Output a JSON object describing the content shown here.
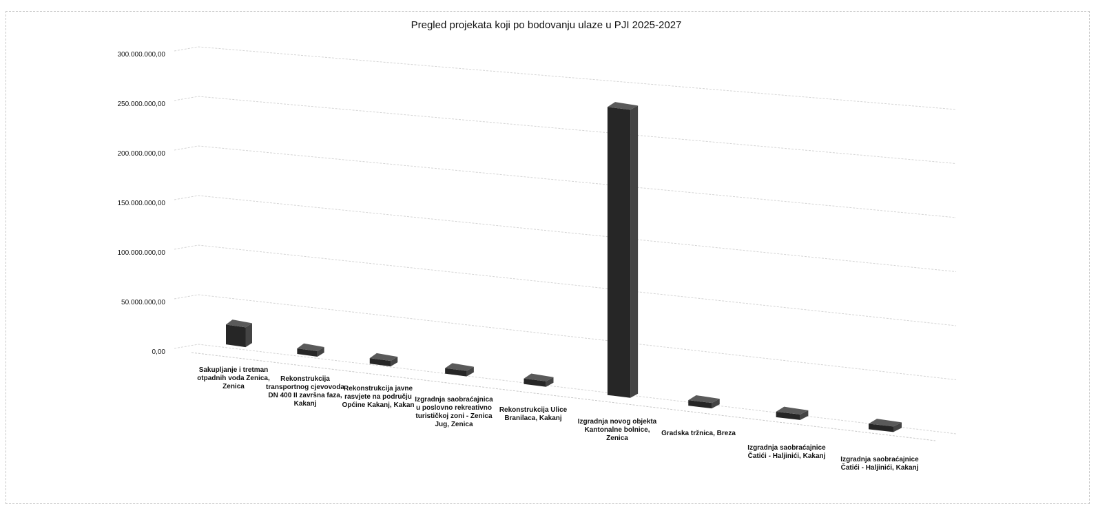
{
  "chart_data": {
    "type": "bar",
    "title": "Pregled projekata koji po bodovanju ulaze u PJI 2025-2027",
    "xlabel": "",
    "ylabel": "",
    "ylim": [
      0,
      300000000
    ],
    "y_ticks": [
      "0,00",
      "50.000.000,00",
      "100.000.000,00",
      "150.000.000,00",
      "200.000.000,00",
      "250.000.000,00",
      "300.000.000,00"
    ],
    "categories": [
      "Sakupljanje i tretman otpadnih voda Zenica, Zenica",
      "Rekonstrukcija transportnog cjevovoda DN 400 II završna faza, Kakanj",
      "Rekonstrukcija javne rasvjete na području Općine Kakanj, Kakan",
      "Izgradnja saobraćajnica u poslovno rekreativno turističkoj zoni - Zenica Jug, Zenica",
      "Rekonstrukcija Ulice Branilaca, Kakanj",
      "Izgradnja novog objekta Kantonalne bolnice, Zenica",
      "Gradska tržnica, Breza",
      "Izgradnja saobraćajnice Čatići - Haljinići, Kakanj",
      "Izgradnja saobraćajnice Čatići - Haljinići, Kakanj"
    ],
    "category_lines": [
      [
        "Sakupljanje i tretman",
        "otpadnih voda Zenica,",
        "Zenica"
      ],
      [
        "Rekonstrukcija",
        "transportnog cjevovoda",
        "DN 400 II završna faza,",
        "Kakanj"
      ],
      [
        "Rekonstrukcija javne",
        "rasvjete na području",
        "Općine Kakanj, Kakan"
      ],
      [
        "Izgradnja saobraćajnica",
        "u poslovno rekreativno",
        "turističkoj zoni - Zenica",
        "Jug, Zenica"
      ],
      [
        "Rekonstrukcija Ulice",
        "Branilaca, Kakanj"
      ],
      [
        "Izgradnja novog objekta",
        "Kantonalne bolnice,",
        "Zenica"
      ],
      [
        "Gradska tržnica, Breza"
      ],
      [
        "Izgradnja saobraćajnice",
        "Čatići - Haljinići, Kakanj"
      ],
      [
        "Izgradnja saobraćajnice",
        "Čatići - Haljinići, Kakanj"
      ]
    ],
    "values": [
      20000000,
      1500000,
      2500000,
      4500000,
      2500000,
      275000000,
      3000000,
      3000000,
      4500000
    ],
    "grid": true,
    "legend": "none",
    "bar_color": "#262626"
  }
}
